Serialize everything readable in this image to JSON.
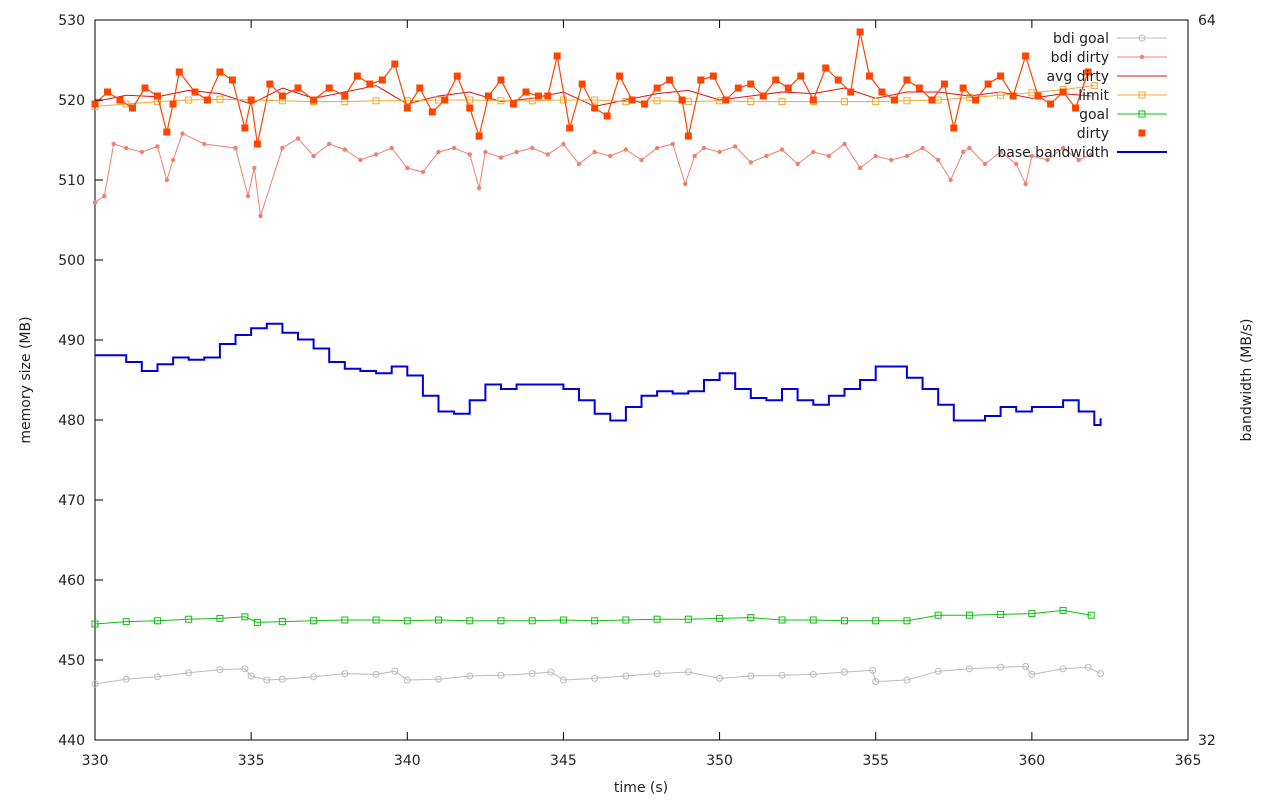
{
  "chart_data": {
    "type": "line",
    "xlabel": "time (s)",
    "ylabel": "memory size (MB)",
    "y2label": "bandwidth (MB/s)",
    "xlim": [
      330,
      365
    ],
    "ylim": [
      440,
      530
    ],
    "y2lim": [
      32,
      64
    ],
    "xticks": [
      330,
      335,
      340,
      345,
      350,
      355,
      360,
      365
    ],
    "yticks": [
      440,
      450,
      460,
      470,
      480,
      490,
      500,
      510,
      520,
      530
    ],
    "y2ticks": [
      32,
      64
    ],
    "grid": false,
    "legend_position": "top-right",
    "series": [
      {
        "name": "bdi goal",
        "color": "#bbbbbb",
        "marker": "circle",
        "x": [
          330.0,
          331.0,
          332.0,
          333.0,
          334.0,
          334.8,
          335.0,
          335.5,
          336.0,
          337.0,
          338.0,
          339.0,
          339.6,
          340.0,
          341.0,
          342.0,
          343.0,
          344.0,
          344.6,
          345.0,
          346.0,
          347.0,
          348.0,
          349.0,
          350.0,
          351.0,
          352.0,
          353.0,
          354.0,
          354.9,
          355.0,
          356.0,
          357.0,
          358.0,
          359.0,
          359.8,
          360.0,
          361.0,
          361.8,
          362.2
        ],
        "values": [
          447.0,
          447.6,
          447.9,
          448.4,
          448.8,
          448.9,
          448.0,
          447.5,
          447.6,
          447.9,
          448.3,
          448.2,
          448.6,
          447.5,
          447.6,
          448.0,
          448.1,
          448.3,
          448.5,
          447.5,
          447.7,
          448.0,
          448.3,
          448.5,
          447.7,
          448.0,
          448.1,
          448.2,
          448.5,
          448.7,
          447.3,
          447.5,
          448.6,
          448.9,
          449.1,
          449.2,
          448.2,
          448.9,
          449.1,
          448.3
        ]
      },
      {
        "name": "bdi dirty",
        "color": "#f08070",
        "marker": "dot",
        "x": [
          330.0,
          330.3,
          330.6,
          331.0,
          331.5,
          332.0,
          332.3,
          332.5,
          332.8,
          333.5,
          334.5,
          334.9,
          335.1,
          335.3,
          336.0,
          336.5,
          337.0,
          337.5,
          338.0,
          338.5,
          339.0,
          339.5,
          340.0,
          340.5,
          341.0,
          341.5,
          342.0,
          342.3,
          342.5,
          343.0,
          343.5,
          344.0,
          344.5,
          345.0,
          345.5,
          346.0,
          346.5,
          347.0,
          347.5,
          348.0,
          348.5,
          348.9,
          349.2,
          349.5,
          350.0,
          350.5,
          351.0,
          351.5,
          352.0,
          352.5,
          353.0,
          353.5,
          354.0,
          354.5,
          355.0,
          355.5,
          356.0,
          356.5,
          357.0,
          357.4,
          357.8,
          358.0,
          358.5,
          359.0,
          359.5,
          359.8,
          360.0,
          360.5,
          361.0,
          361.5,
          361.9
        ],
        "values": [
          507.2,
          508.0,
          514.5,
          514.0,
          513.5,
          514.2,
          510.0,
          512.5,
          515.8,
          514.5,
          514.0,
          508.0,
          511.5,
          505.5,
          514.0,
          515.2,
          513.0,
          514.5,
          513.8,
          512.5,
          513.2,
          514.0,
          511.5,
          511.0,
          513.5,
          514.0,
          513.2,
          509.0,
          513.5,
          512.8,
          513.5,
          514.0,
          513.2,
          514.5,
          512.0,
          513.5,
          513.0,
          513.8,
          512.5,
          514.0,
          514.5,
          509.5,
          513.0,
          514.0,
          513.5,
          514.2,
          512.2,
          513.0,
          513.8,
          512.0,
          513.5,
          513.0,
          514.5,
          511.5,
          513.0,
          512.5,
          513.0,
          514.0,
          512.5,
          510.0,
          513.5,
          514.0,
          512.0,
          513.5,
          512.0,
          509.5,
          513.0,
          512.5,
          514.0,
          512.5,
          513.2
        ]
      },
      {
        "name": "avg dirty",
        "color": "#e01010",
        "marker": "none",
        "x": [
          330.0,
          331.0,
          332.0,
          333.0,
          334.0,
          335.0,
          336.0,
          337.0,
          338.0,
          339.0,
          340.0,
          341.0,
          342.0,
          343.0,
          344.0,
          345.0,
          346.0,
          347.0,
          348.0,
          349.0,
          350.0,
          351.0,
          352.0,
          353.0,
          354.0,
          355.0,
          356.0,
          357.0,
          358.0,
          359.0,
          360.0,
          361.0,
          361.9
        ],
        "values": [
          519.8,
          520.6,
          520.4,
          521.2,
          520.8,
          519.5,
          521.5,
          520.2,
          521.0,
          521.8,
          519.5,
          520.5,
          521.0,
          519.8,
          520.2,
          521.0,
          519.2,
          520.0,
          520.8,
          521.2,
          520.0,
          520.5,
          521.0,
          520.8,
          521.5,
          520.2,
          521.0,
          521.0,
          520.5,
          521.0,
          520.2,
          520.8,
          520.5
        ]
      },
      {
        "name": "limit",
        "color": "#f0a830",
        "marker": "open-square",
        "x": [
          330.0,
          331.0,
          332.0,
          333.0,
          334.0,
          335.0,
          336.0,
          337.0,
          338.0,
          339.0,
          340.0,
          341.0,
          342.0,
          343.0,
          344.0,
          345.0,
          346.0,
          347.0,
          348.0,
          349.0,
          350.0,
          351.0,
          352.0,
          353.0,
          354.0,
          355.0,
          356.0,
          357.0,
          358.0,
          359.0,
          360.0,
          361.0,
          362.0
        ],
        "values": [
          519.2,
          519.5,
          519.8,
          520.0,
          520.1,
          520.0,
          519.9,
          519.8,
          519.8,
          519.9,
          519.9,
          520.0,
          520.0,
          519.9,
          519.9,
          520.0,
          520.0,
          519.8,
          519.9,
          519.8,
          519.9,
          519.8,
          519.8,
          519.8,
          519.8,
          519.8,
          519.9,
          520.0,
          520.3,
          520.6,
          520.9,
          521.3,
          521.8
        ]
      },
      {
        "name": "goal",
        "color": "#10c010",
        "marker": "open-square",
        "x": [
          330.0,
          331.0,
          332.0,
          333.0,
          334.0,
          334.8,
          335.2,
          336.0,
          337.0,
          338.0,
          339.0,
          340.0,
          341.0,
          342.0,
          343.0,
          344.0,
          345.0,
          346.0,
          347.0,
          348.0,
          349.0,
          350.0,
          351.0,
          352.0,
          353.0,
          354.0,
          355.0,
          356.0,
          357.0,
          358.0,
          359.0,
          360.0,
          361.0,
          361.9
        ],
        "values": [
          454.5,
          454.8,
          454.9,
          455.1,
          455.2,
          455.4,
          454.7,
          454.8,
          454.9,
          455.0,
          455.0,
          454.9,
          455.0,
          454.9,
          454.9,
          454.9,
          455.0,
          454.9,
          455.0,
          455.1,
          455.1,
          455.2,
          455.3,
          455.0,
          455.0,
          454.9,
          454.9,
          454.9,
          455.6,
          455.6,
          455.7,
          455.8,
          456.2,
          455.6
        ]
      },
      {
        "name": "dirty",
        "color": "#ff4400",
        "marker": "filled-square",
        "x": [
          330.0,
          330.4,
          330.8,
          331.2,
          331.6,
          332.0,
          332.3,
          332.5,
          332.7,
          333.2,
          333.6,
          334.0,
          334.4,
          334.8,
          335.0,
          335.2,
          335.6,
          336.0,
          336.5,
          337.0,
          337.5,
          338.0,
          338.4,
          338.8,
          339.2,
          339.6,
          340.0,
          340.4,
          340.8,
          341.2,
          341.6,
          342.0,
          342.3,
          342.6,
          343.0,
          343.4,
          343.8,
          344.2,
          344.5,
          344.8,
          345.2,
          345.6,
          346.0,
          346.4,
          346.8,
          347.2,
          347.6,
          348.0,
          348.4,
          348.8,
          349.0,
          349.4,
          349.8,
          350.2,
          350.6,
          351.0,
          351.4,
          351.8,
          352.2,
          352.6,
          353.0,
          353.4,
          353.8,
          354.2,
          354.5,
          354.8,
          355.2,
          355.6,
          356.0,
          356.4,
          356.8,
          357.2,
          357.5,
          357.8,
          358.2,
          358.6,
          359.0,
          359.4,
          359.8,
          360.2,
          360.6,
          361.0,
          361.4,
          361.8
        ],
        "values": [
          519.5,
          521.0,
          520.0,
          519.0,
          521.5,
          520.5,
          516.0,
          519.5,
          523.5,
          521.0,
          520.0,
          523.5,
          522.5,
          516.5,
          520.0,
          514.5,
          522.0,
          520.5,
          521.5,
          520.0,
          521.5,
          520.5,
          523.0,
          522.0,
          522.5,
          524.5,
          519.0,
          521.5,
          518.5,
          520.0,
          523.0,
          519.0,
          515.5,
          520.5,
          522.5,
          519.5,
          521.0,
          520.5,
          520.5,
          525.5,
          516.5,
          522.0,
          519.0,
          518.0,
          523.0,
          520.0,
          519.5,
          521.5,
          522.5,
          520.0,
          515.5,
          522.5,
          523.0,
          520.0,
          521.5,
          522.0,
          520.5,
          522.5,
          521.5,
          523.0,
          520.0,
          524.0,
          522.5,
          521.0,
          528.5,
          523.0,
          521.0,
          520.0,
          522.5,
          521.5,
          520.0,
          522.0,
          516.5,
          521.5,
          520.0,
          522.0,
          523.0,
          520.5,
          525.5,
          520.5,
          519.5,
          521.0,
          519.0,
          523.5
        ]
      }
    ],
    "secondary_series": [
      {
        "name": "base bandwidth",
        "color": "#0000dd",
        "axis": "y2",
        "x": [
          330.0,
          330.5,
          331.0,
          331.5,
          332.0,
          332.5,
          333.0,
          333.5,
          334.0,
          334.5,
          335.0,
          335.5,
          336.0,
          336.5,
          337.0,
          337.5,
          338.0,
          338.5,
          339.0,
          339.5,
          340.0,
          340.5,
          341.0,
          341.5,
          342.0,
          342.5,
          343.0,
          343.5,
          344.0,
          344.5,
          345.0,
          345.5,
          346.0,
          346.5,
          347.0,
          347.5,
          348.0,
          348.5,
          349.0,
          349.5,
          350.0,
          350.5,
          351.0,
          351.5,
          352.0,
          352.5,
          353.0,
          353.5,
          354.0,
          354.5,
          355.0,
          355.5,
          356.0,
          356.5,
          357.0,
          357.5,
          358.0,
          358.5,
          359.0,
          359.5,
          360.0,
          360.5,
          361.0,
          361.5,
          362.0,
          362.2
        ],
        "values": [
          49.1,
          49.1,
          48.8,
          48.4,
          48.7,
          49.0,
          48.9,
          49.0,
          49.6,
          50.0,
          50.3,
          50.5,
          50.1,
          49.8,
          49.4,
          48.8,
          48.5,
          48.4,
          48.3,
          48.6,
          48.2,
          47.3,
          46.6,
          46.5,
          47.1,
          47.8,
          47.6,
          47.8,
          47.8,
          47.8,
          47.6,
          47.1,
          46.5,
          46.2,
          46.8,
          47.3,
          47.5,
          47.4,
          47.5,
          48.0,
          48.3,
          47.6,
          47.2,
          47.1,
          47.6,
          47.1,
          46.9,
          47.3,
          47.6,
          48.0,
          48.6,
          48.6,
          48.1,
          47.6,
          46.9,
          46.2,
          46.2,
          46.4,
          46.8,
          46.6,
          46.8,
          46.8,
          47.1,
          46.6,
          46.0,
          46.3
        ]
      }
    ]
  }
}
